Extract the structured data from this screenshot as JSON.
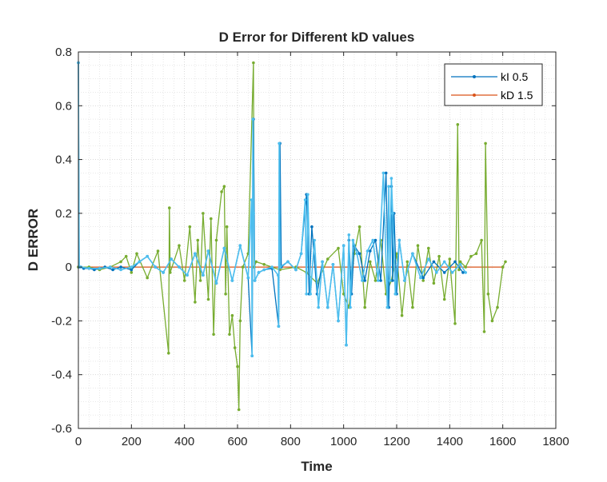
{
  "chart_data": {
    "type": "line",
    "title": "D Error for Different kD values",
    "xlabel": "Time",
    "ylabel": "D ERROR",
    "xlim": [
      0,
      1800
    ],
    "ylim": [
      -0.6,
      0.8
    ],
    "xticks": [
      "0",
      "200",
      "400",
      "600",
      "800",
      "1000",
      "1200",
      "1400",
      "1600",
      "1800"
    ],
    "yticks": [
      "-0.6",
      "-0.4",
      "-0.2",
      "0",
      "0.2",
      "0.4",
      "0.6",
      "0.8"
    ],
    "grid": true,
    "minor_grid": true,
    "legend_position": "top-right",
    "series": [
      {
        "name": "kI 0.5",
        "color": "#0072BD",
        "x": [
          0,
          3,
          6,
          20,
          40,
          60,
          80,
          100,
          130,
          160,
          200,
          230,
          260,
          290,
          320,
          350,
          380,
          410,
          440,
          470,
          490,
          520,
          550,
          580,
          610,
          640,
          655,
          660,
          665,
          680,
          700,
          730,
          755,
          760,
          765,
          790,
          820,
          840,
          860,
          870,
          880,
          900,
          920,
          940,
          960,
          980,
          1000,
          1010,
          1020,
          1030,
          1040,
          1060,
          1080,
          1100,
          1120,
          1140,
          1160,
          1170,
          1180,
          1185,
          1190,
          1200,
          1210,
          1230,
          1260,
          1300,
          1340,
          1380,
          1420,
          1450
        ],
        "values": [
          0.76,
          0.0,
          0.0,
          -0.005,
          -0.005,
          -0.01,
          -0.005,
          0.0,
          -0.01,
          0.0,
          -0.01,
          0.02,
          0.04,
          0.0,
          -0.02,
          0.03,
          0.0,
          -0.03,
          0.05,
          -0.03,
          0.06,
          -0.06,
          0.07,
          -0.05,
          0.08,
          -0.04,
          -0.33,
          0.55,
          -0.05,
          -0.02,
          -0.01,
          -0.005,
          -0.22,
          0.46,
          0.0,
          0.02,
          -0.01,
          0.05,
          0.27,
          -0.1,
          0.15,
          -0.1,
          0.02,
          -0.15,
          0.01,
          -0.2,
          0.08,
          -0.29,
          0.1,
          -0.1,
          0.08,
          0.05,
          -0.05,
          0.06,
          0.1,
          -0.05,
          0.35,
          -0.15,
          0.3,
          -0.05,
          0.2,
          -0.1,
          0.1,
          -0.05,
          0.05,
          -0.04,
          0.02,
          -0.02,
          0.02,
          -0.02
        ]
      },
      {
        "name": "kD 1.5",
        "color": "#D95319",
        "x": [
          0,
          1600
        ],
        "values": [
          0,
          0
        ]
      },
      {
        "name": "",
        "color": "#77AC30",
        "x": [
          0,
          40,
          80,
          120,
          160,
          180,
          200,
          220,
          260,
          300,
          340,
          343,
          346,
          380,
          400,
          420,
          440,
          450,
          460,
          470,
          490,
          500,
          510,
          520,
          540,
          550,
          555,
          560,
          570,
          580,
          590,
          600,
          605,
          610,
          620,
          640,
          660,
          663,
          670,
          700,
          760,
          820,
          860,
          900,
          940,
          980,
          1000,
          1020,
          1040,
          1060,
          1080,
          1100,
          1120,
          1140,
          1160,
          1180,
          1200,
          1220,
          1240,
          1260,
          1280,
          1300,
          1320,
          1340,
          1360,
          1380,
          1400,
          1420,
          1430,
          1435,
          1440,
          1460,
          1480,
          1500,
          1520,
          1530,
          1535,
          1545,
          1560,
          1580,
          1600,
          1610
        ],
        "values": [
          0,
          0.0,
          -0.01,
          0.0,
          0.02,
          0.04,
          -0.02,
          0.05,
          -0.04,
          0.06,
          -0.32,
          0.22,
          -0.02,
          0.08,
          -0.05,
          0.15,
          -0.13,
          0.1,
          -0.05,
          0.2,
          -0.12,
          0.18,
          -0.25,
          0.1,
          0.28,
          0.3,
          -0.1,
          0.15,
          -0.25,
          -0.18,
          -0.3,
          -0.37,
          -0.53,
          -0.2,
          0.0,
          0.05,
          0.76,
          0.0,
          0.02,
          0.01,
          -0.01,
          0.0,
          -0.02,
          -0.06,
          0.03,
          0.07,
          -0.1,
          -0.15,
          0.05,
          0.15,
          -0.15,
          0.02,
          -0.05,
          0.1,
          -0.1,
          -0.05,
          0.05,
          -0.18,
          0.02,
          -0.15,
          0.08,
          -0.05,
          0.07,
          -0.06,
          0.04,
          -0.12,
          0.03,
          -0.21,
          0.53,
          -0.01,
          0.02,
          0.0,
          0.04,
          0.05,
          0.1,
          -0.24,
          0.46,
          -0.1,
          -0.2,
          -0.15,
          0.0,
          0.02
        ]
      },
      {
        "name": "",
        "color": "#4DBEEE",
        "x": [
          0,
          3,
          10,
          40,
          80,
          120,
          160,
          200,
          230,
          260,
          290,
          320,
          350,
          380,
          410,
          440,
          470,
          490,
          520,
          550,
          580,
          610,
          640,
          653,
          655,
          658,
          661,
          665,
          680,
          700,
          730,
          753,
          755,
          757,
          760,
          790,
          820,
          840,
          855,
          860,
          865,
          875,
          890,
          905,
          920,
          940,
          960,
          980,
          1000,
          1010,
          1020,
          1025,
          1035,
          1050,
          1070,
          1090,
          1110,
          1130,
          1150,
          1165,
          1170,
          1175,
          1180,
          1185,
          1195,
          1210,
          1230,
          1260,
          1290,
          1320,
          1350,
          1380,
          1410,
          1440,
          1460
        ],
        "values": [
          0.76,
          0.0,
          0.0,
          -0.005,
          -0.005,
          0.0,
          -0.01,
          0.0,
          0.02,
          0.04,
          0.0,
          -0.02,
          0.03,
          0.0,
          -0.03,
          0.05,
          -0.03,
          0.06,
          -0.06,
          0.07,
          -0.05,
          0.08,
          -0.04,
          0.25,
          -0.33,
          0.55,
          0.2,
          -0.05,
          -0.02,
          -0.01,
          0.0,
          -0.03,
          -0.22,
          0.46,
          0.0,
          0.02,
          -0.01,
          0.05,
          0.25,
          -0.1,
          0.27,
          -0.1,
          0.1,
          -0.15,
          0.02,
          -0.15,
          0.01,
          -0.2,
          0.08,
          -0.29,
          0.12,
          -0.15,
          0.1,
          0.05,
          -0.05,
          0.06,
          0.1,
          -0.05,
          0.35,
          -0.15,
          0.3,
          -0.05,
          0.33,
          0.2,
          -0.1,
          0.1,
          -0.05,
          0.05,
          -0.04,
          0.03,
          -0.02,
          0.02,
          -0.02,
          0.01,
          -0.02
        ]
      }
    ]
  }
}
